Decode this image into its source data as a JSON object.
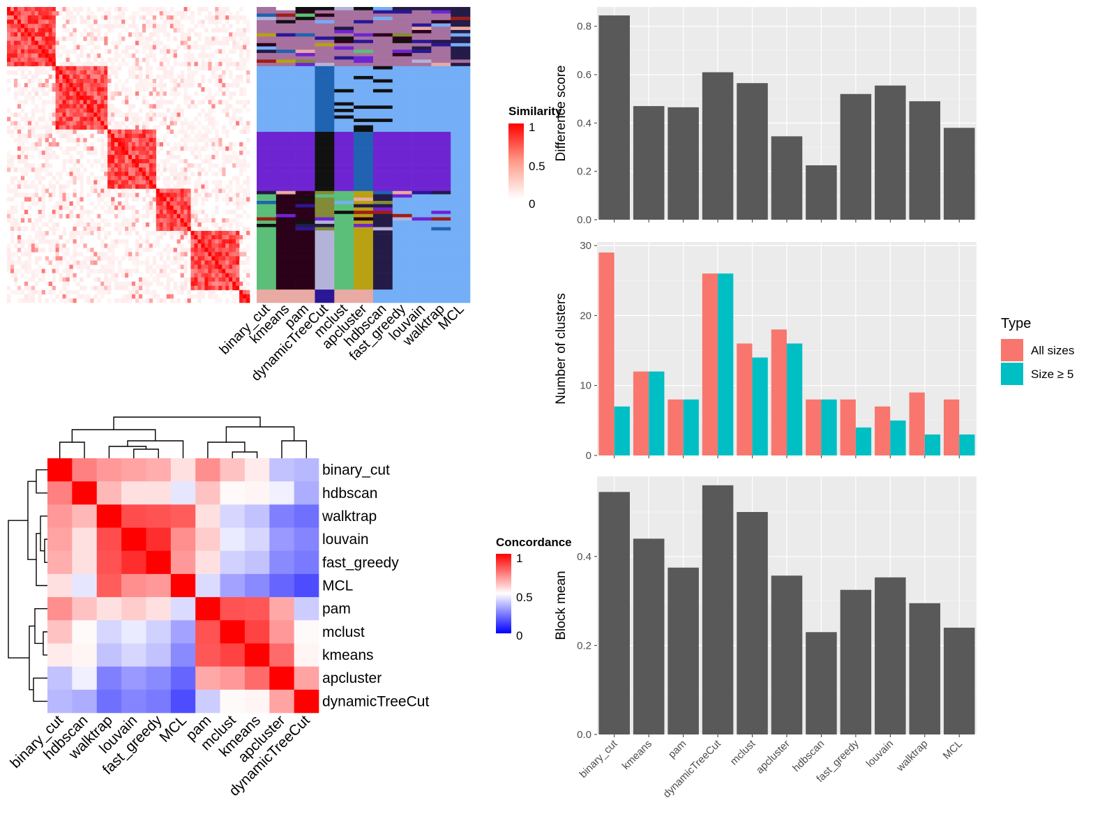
{
  "chart_data": [
    {
      "type": "heatmap",
      "panel": "similarity-matrix-with-cluster-labels",
      "legend_title": "Similarity",
      "legend_ticks": [
        "1",
        "0.5",
        "0"
      ],
      "colors": {
        "low": "#ffffff",
        "high": "#ff0000"
      },
      "method_columns": [
        "binary_cut",
        "kmeans",
        "pam",
        "dynamicTreeCut",
        "mclust",
        "apcluster",
        "hdbscan",
        "fast_greedy",
        "louvain",
        "walktrap",
        "MCL"
      ],
      "block_sizes": [
        0.2,
        0.22,
        0.2,
        0.13,
        0.2,
        0.05
      ],
      "label_palette": [
        "#241b47",
        "#74aef6",
        "#6f24d2",
        "#b8a112",
        "#5bbf79",
        "#2b0019",
        "#111111",
        "#a01d16",
        "#1f63b1",
        "#e9aaa3",
        "#b3b3d9",
        "#838b39",
        "#2a1795",
        "#a7719f",
        "#ffffff"
      ]
    },
    {
      "type": "heatmap",
      "panel": "concordance-matrix",
      "legend_title": "Concordance",
      "legend_ticks": [
        "1",
        "0.5",
        "0"
      ],
      "colors": {
        "low": "#0000ff",
        "mid": "#ffffff",
        "high": "#ff0000"
      },
      "row_labels": [
        "binary_cut",
        "hdbscan",
        "walktrap",
        "louvain",
        "fast_greedy",
        "MCL",
        "pam",
        "mclust",
        "kmeans",
        "apcluster",
        "dynamicTreeCut"
      ],
      "col_labels": [
        "binary_cut",
        "hdbscan",
        "walktrap",
        "louvain",
        "fast_greedy",
        "MCL",
        "pam",
        "mclust",
        "kmeans",
        "apcluster",
        "dynamicTreeCut"
      ],
      "values": [
        [
          1.0,
          0.75,
          0.7,
          0.68,
          0.66,
          0.56,
          0.72,
          0.62,
          0.54,
          0.38,
          0.36
        ],
        [
          0.75,
          1.0,
          0.64,
          0.56,
          0.56,
          0.45,
          0.62,
          0.51,
          0.52,
          0.47,
          0.34
        ],
        [
          0.7,
          0.64,
          1.0,
          0.85,
          0.84,
          0.82,
          0.56,
          0.42,
          0.38,
          0.25,
          0.22
        ],
        [
          0.68,
          0.56,
          0.85,
          1.0,
          0.91,
          0.72,
          0.6,
          0.46,
          0.42,
          0.3,
          0.26
        ],
        [
          0.66,
          0.56,
          0.84,
          0.91,
          1.0,
          0.7,
          0.56,
          0.41,
          0.38,
          0.27,
          0.24
        ],
        [
          0.56,
          0.45,
          0.82,
          0.72,
          0.7,
          1.0,
          0.43,
          0.32,
          0.27,
          0.2,
          0.15
        ],
        [
          0.72,
          0.62,
          0.56,
          0.6,
          0.56,
          0.43,
          1.0,
          0.84,
          0.83,
          0.67,
          0.4
        ],
        [
          0.62,
          0.51,
          0.42,
          0.46,
          0.41,
          0.32,
          0.84,
          1.0,
          0.87,
          0.7,
          0.51
        ],
        [
          0.54,
          0.52,
          0.38,
          0.42,
          0.38,
          0.27,
          0.83,
          0.87,
          1.0,
          0.79,
          0.52
        ],
        [
          0.38,
          0.47,
          0.25,
          0.3,
          0.27,
          0.2,
          0.67,
          0.7,
          0.79,
          1.0,
          0.68
        ],
        [
          0.36,
          0.34,
          0.22,
          0.26,
          0.24,
          0.15,
          0.4,
          0.51,
          0.52,
          0.68,
          1.0
        ]
      ],
      "dendrogram": "hierarchical clustering on rows and columns"
    },
    {
      "type": "bar",
      "panel": "difference-score",
      "categories": [
        "binary_cut",
        "kmeans",
        "pam",
        "dynamicTreeCut",
        "mclust",
        "apcluster",
        "hdbscan",
        "fast_greedy",
        "louvain",
        "walktrap",
        "MCL"
      ],
      "values": [
        0.845,
        0.47,
        0.465,
        0.61,
        0.565,
        0.345,
        0.225,
        0.52,
        0.555,
        0.49,
        0.38
      ],
      "ylabel": "Difference score",
      "ylim": [
        0,
        0.88
      ],
      "yticks": [
        "0.0",
        "0.2",
        "0.4",
        "0.6",
        "0.8"
      ],
      "color": "#595959",
      "grid": true
    },
    {
      "type": "bar",
      "panel": "number-of-clusters",
      "categories": [
        "binary_cut",
        "kmeans",
        "pam",
        "dynamicTreeCut",
        "mclust",
        "apcluster",
        "hdbscan",
        "fast_greedy",
        "louvain",
        "walktrap",
        "MCL"
      ],
      "series": [
        {
          "name": "All sizes",
          "values": [
            29,
            12,
            8,
            26,
            16,
            18,
            8,
            8,
            7,
            9,
            8
          ],
          "color": "#f8766d"
        },
        {
          "name": "Size ≥ 5",
          "values": [
            7,
            12,
            8,
            26,
            14,
            16,
            8,
            4,
            5,
            3,
            3
          ],
          "color": "#00bfc4"
        }
      ],
      "ylabel": "Number of clusters",
      "ylim": [
        0,
        30.5
      ],
      "yticks": [
        "0",
        "10",
        "20",
        "30"
      ],
      "legend_title": "Type",
      "legend_position": "right",
      "grid": true
    },
    {
      "type": "bar",
      "panel": "block-mean",
      "categories": [
        "binary_cut",
        "kmeans",
        "pam",
        "dynamicTreeCut",
        "mclust",
        "apcluster",
        "hdbscan",
        "fast_greedy",
        "louvain",
        "walktrap",
        "MCL"
      ],
      "values": [
        0.545,
        0.44,
        0.375,
        0.56,
        0.5,
        0.357,
        0.23,
        0.325,
        0.353,
        0.295,
        0.24
      ],
      "ylabel": "Block mean",
      "ylim": [
        0,
        0.58
      ],
      "yticks": [
        "0.0",
        "0.2",
        "0.4"
      ],
      "color": "#595959",
      "grid": true
    }
  ]
}
